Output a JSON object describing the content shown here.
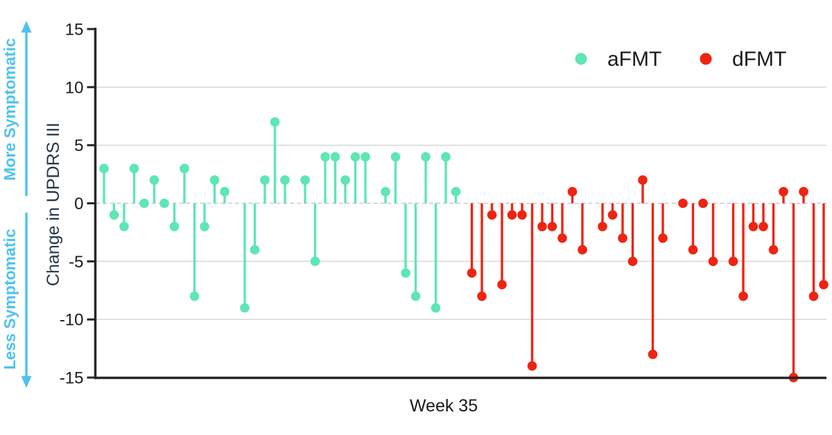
{
  "chart_data": {
    "type": "lollipop",
    "title": "",
    "xlabel": "Week 35",
    "ylabel": "Change in UPDRS III",
    "ylim": [
      -15,
      15
    ],
    "yticks": [
      15,
      10,
      5,
      0,
      -5,
      -10,
      -15
    ],
    "gridline_values": [
      10,
      5,
      -5,
      -10
    ],
    "zero_line_style": "dashed",
    "legend_position": "top-right",
    "annotations": {
      "up": "More Symptomatic",
      "down": "Less Symptomatic"
    },
    "legend": [
      {
        "label": "aFMT",
        "color": "#5ee6b4"
      },
      {
        "label": "dFMT",
        "color": "#ee2412"
      }
    ],
    "series": [
      {
        "name": "aFMT",
        "color": "#5ee6b4",
        "note": "null = empty slot (no subject plotted at that position)",
        "values": [
          3,
          -1,
          -2,
          3,
          0,
          2,
          0,
          -2,
          3,
          -8,
          -2,
          2,
          1,
          null,
          -9,
          -4,
          2,
          7,
          2,
          null,
          2,
          -5,
          4,
          4,
          2,
          4,
          4,
          null,
          1,
          4,
          -6,
          -8,
          4,
          -9,
          4,
          1
        ]
      },
      {
        "name": "dFMT",
        "color": "#ee2412",
        "note": "null = empty slot (no subject plotted at that position)",
        "values": [
          -6,
          -8,
          -1,
          -7,
          -1,
          -1,
          -14,
          -2,
          -2,
          -3,
          1,
          -4,
          null,
          -2,
          -1,
          -3,
          -5,
          2,
          -13,
          -3,
          null,
          0,
          -4,
          0,
          -5,
          null,
          -5,
          -8,
          -2,
          -2,
          -4,
          1,
          -15,
          1,
          -8,
          -7
        ]
      }
    ]
  },
  "colors": {
    "afmt": "#5ee6b4",
    "dfmt": "#ee2412",
    "gridline": "#d9d9d9",
    "zero_line": "#c8c8c8",
    "axis_spine": "#262626",
    "direction_text": "#4ec3ee",
    "y_axis_title": "#23384a",
    "tick_text": "#1a1a1a",
    "background": "#ffffff"
  }
}
